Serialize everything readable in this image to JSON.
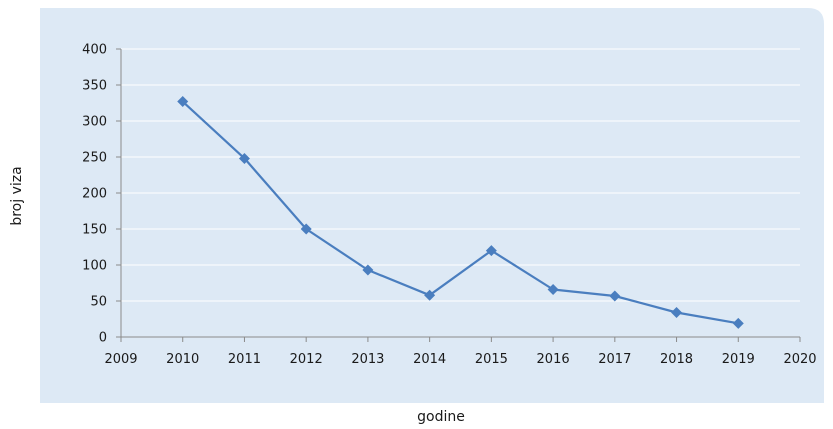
{
  "chart_data": {
    "type": "scatter",
    "title": "",
    "xlabel": "godine",
    "ylabel": "broj viza",
    "xlim": [
      2009,
      2020
    ],
    "ylim": [
      0,
      400
    ],
    "x_ticks": [
      2009,
      2010,
      2011,
      2012,
      2013,
      2014,
      2015,
      2016,
      2017,
      2018,
      2019,
      2020
    ],
    "y_ticks": [
      0,
      50,
      100,
      150,
      200,
      250,
      300,
      350,
      400
    ],
    "grid": "horizontal",
    "legend": "none",
    "marker": "diamond",
    "connect_points": true,
    "series": [
      {
        "color": "#4a7ebf",
        "x": [
          2010,
          2011,
          2012,
          2013,
          2014,
          2015,
          2016,
          2017,
          2018,
          2019
        ],
        "y": [
          327,
          248,
          150,
          93,
          58,
          120,
          66,
          57,
          34,
          19
        ]
      }
    ],
    "colors": {
      "plot_background": "#dde9f5",
      "gridline": "#ffffff",
      "axis_line": "#8a8a8a",
      "text": "#1a1a1a"
    }
  }
}
